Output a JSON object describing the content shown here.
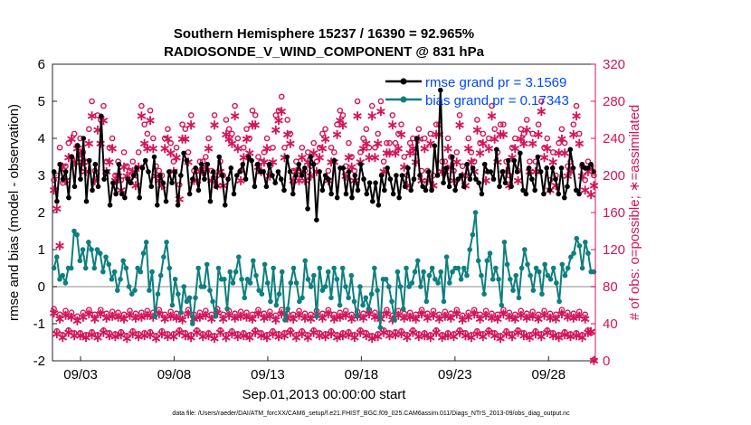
{
  "chart_data": {
    "type": "line",
    "title": "Southern Hemisphere 15237 / 16390 = 92.965%",
    "subtitle": "RADIOSONDE_V_WIND_COMPONENT @ 831 hPa",
    "xlabel": "Sep.01,2013 00:00:00 start",
    "ylabel_left": "rmse and bias (model - observation)",
    "ylabel_right": "# of obs: o=possible; ∗=assimilated",
    "footnote": "data file: /Users/raeder/DAI/ATM_forcXX/CAM6_setup/f.e21.FHIST_BGC.f09_025.CAM6assim.011/Diags_NTrS_2013-09/obs_diag_output.nc",
    "x_tick_labels": [
      "09/03",
      "09/08",
      "09/13",
      "09/18",
      "09/23",
      "09/28"
    ],
    "x_tick_days": [
      3,
      8,
      13,
      18,
      23,
      28
    ],
    "xlim_days": [
      1.5,
      30.5
    ],
    "ylim_left": [
      -2,
      6
    ],
    "left_ticks": [
      "-2",
      "-1",
      "0",
      "1",
      "2",
      "3",
      "4",
      "5",
      "6"
    ],
    "ylim_right": [
      0,
      320
    ],
    "right_ticks": [
      "0",
      "40",
      "80",
      "120",
      "160",
      "200",
      "240",
      "280",
      "320"
    ],
    "reference_line_y": 0,
    "legend": [
      {
        "name": "rmse grand pr = 3.1569",
        "color": "#000000"
      },
      {
        "name": "bias grand pr = 0.17343",
        "color": "#008080"
      }
    ],
    "colors": {
      "rmse": "#000000",
      "bias": "#0d7f7f",
      "counts": "#d4145a",
      "zero_line": "#b3b3b3",
      "legend_text": "#0047ff"
    },
    "series": [
      {
        "name": "rmse",
        "axis": "left",
        "values": [
          3.1,
          2.3,
          3.3,
          2.9,
          3.1,
          2.4,
          3.5,
          2.7,
          3.8,
          2.9,
          4.0,
          2.3,
          3.4,
          2.6,
          3.3,
          2.7,
          4.6,
          2.9,
          3.1,
          2.2,
          2.8,
          2.5,
          3.3,
          2.5,
          2.4,
          2.9,
          2.8,
          3.0,
          3.2,
          2.4,
          3.2,
          3.4,
          3.1,
          2.7,
          3.5,
          2.2,
          3.0,
          2.8,
          2.3,
          3.1,
          2.8,
          3.1,
          2.2,
          3.0,
          3.6,
          3.4,
          2.5,
          2.9,
          3.2,
          2.6,
          3.3,
          2.9,
          3.3,
          2.3,
          3.1,
          2.7,
          3.5,
          3.0,
          2.2,
          2.9,
          3.2,
          2.5,
          3.0,
          3.1,
          3.3,
          2.9,
          3.5,
          3.4,
          2.7,
          3.3,
          3.1,
          3.1,
          2.7,
          3.3,
          3.0,
          2.8,
          3.1,
          2.9,
          2.6,
          3.5,
          3.1,
          2.5,
          3.0,
          3.3,
          3.0,
          3.2,
          2.1,
          3.5,
          3.3,
          1.8,
          3.1,
          2.6,
          3.0,
          2.9,
          2.5,
          3.4,
          2.4,
          3.2,
          3.2,
          2.5,
          3.1,
          2.4,
          3.0,
          2.6,
          3.3,
          2.9,
          2.5,
          2.8,
          2.3,
          2.8,
          2.2,
          3.0,
          2.6,
          3.2,
          2.9,
          2.5,
          3.0,
          2.4,
          3.0,
          2.7,
          3.2,
          2.6,
          2.9,
          4.0,
          3.0,
          2.7,
          2.6,
          3.1,
          2.6,
          3.8,
          3.0,
          5.3,
          2.8,
          3.2,
          2.7,
          3.5,
          2.6,
          2.9,
          3.0,
          2.7,
          3.3,
          2.9,
          3.2,
          2.9,
          2.8,
          2.5,
          3.3,
          3.1,
          3.1,
          2.9,
          3.7,
          2.7,
          3.1,
          2.8,
          3.4,
          2.7,
          3.4,
          3.1,
          3.6,
          2.6,
          2.5,
          3.2,
          2.9,
          2.6,
          3.5,
          3.1,
          2.5,
          3.2,
          2.6,
          3.2,
          2.9,
          2.5,
          3.2,
          2.4,
          2.7,
          3.7,
          3.2,
          2.6,
          2.5,
          3.3,
          3.2,
          3.2,
          3.3,
          3.1
        ]
      },
      {
        "name": "bias",
        "axis": "left",
        "values": [
          0.5,
          0.8,
          0.2,
          0.3,
          0.1,
          0.5,
          0.5,
          1.5,
          1.4,
          0.7,
          1.0,
          0.5,
          1.2,
          1.0,
          0.5,
          1.0,
          0.9,
          0.4,
          0.8,
          0.6,
          0.2,
          0.4,
          -0.1,
          0.2,
          0.7,
          0.5,
          0.0,
          -0.2,
          -0.1,
          0.5,
          0.4,
          0.9,
          1.2,
          -0.1,
          0.4,
          -0.8,
          -0.2,
          0.3,
          0.8,
          1.2,
          0.5,
          -0.5,
          0.2,
          -0.2,
          -0.7,
          0.0,
          -0.4,
          -0.3,
          -1.0,
          -0.3,
          0.5,
          0.0,
          0.0,
          0.6,
          -0.1,
          -0.4,
          -0.8,
          0.5,
          0.2,
          0.2,
          -0.6,
          0.4,
          0.1,
          0.4,
          0.8,
          0.2,
          -0.3,
          0.2,
          0.1,
          0.7,
          0.3,
          -0.1,
          -0.2,
          0.6,
          0.1,
          -0.4,
          0.5,
          -0.5,
          -0.2,
          0.4,
          -0.9,
          -0.6,
          0.1,
          0.5,
          0.1,
          -0.4,
          -0.3,
          0.7,
          0.2,
          0.0,
          0.3,
          -0.8,
          0.5,
          -0.1,
          0.0,
          0.4,
          -0.3,
          0.5,
          0.2,
          -0.5,
          0.5,
          0.0,
          -0.3,
          0.3,
          -0.4,
          -0.8,
          0.0,
          -0.5,
          -0.3,
          -0.6,
          -0.2,
          0.5,
          -0.1,
          -1.1,
          0.2,
          0.2,
          0.0,
          -0.4,
          -0.9,
          0.4,
          0.0,
          -0.6,
          0.5,
          0.0,
          0.1,
          0.4,
          0.7,
          0.0,
          0.4,
          -0.4,
          0.3,
          0.5,
          0.2,
          0.1,
          0.4,
          -0.4,
          0.8,
          0.1,
          0.4,
          0.5,
          0.5,
          0.2,
          0.5,
          0.3,
          1.0,
          1.4,
          2.0,
          0.7,
          0.3,
          -0.2,
          0.7,
          0.9,
          0.2,
          0.5,
          0.2,
          -0.5,
          1.2,
          0.6,
          0.2,
          -0.1,
          0.3,
          -0.3,
          0.5,
          1.0,
          0.6,
          0.3,
          -0.1,
          0.5,
          0.4,
          -0.2,
          0.6,
          0.3,
          0.2,
          0.5,
          0.1,
          -0.4,
          0.6,
          0.3,
          0.5,
          0.8,
          0.9,
          1.3,
          1.1,
          0.5,
          1.2,
          0.9,
          0.4,
          0.4
        ]
      },
      {
        "name": "possible obs",
        "axis": "right",
        "marker": "o",
        "values": [
          195,
          200,
          230,
          192,
          210,
          235,
          220,
          245,
          232,
          240,
          225,
          215,
          250,
          280,
          205,
          265,
          260,
          275,
          215,
          230,
          240,
          200,
          215,
          195,
          225,
          210,
          205,
          215,
          200,
          225,
          275,
          255,
          245,
          270,
          240,
          210,
          205,
          200,
          240,
          250,
          235,
          215,
          230,
          190,
          255,
          250,
          225,
          265,
          205,
          205,
          215,
          215,
          220,
          240,
          205,
          265,
          200,
          215,
          200,
          260,
          250,
          245,
          275,
          240,
          205,
          230,
          250,
          240,
          270,
          265,
          220,
          215,
          225,
          240,
          210,
          230,
          265,
          270,
          285,
          230,
          260,
          245,
          205,
          215,
          205,
          230,
          205,
          225,
          210,
          235,
          215,
          230,
          245,
          250,
          205,
          230,
          225,
          255,
          270,
          265,
          210,
          235,
          220,
          205,
          280,
          225,
          240,
          250,
          230,
          275,
          230,
          245,
          280,
          215,
          235,
          235,
          265,
          235,
          245,
          255,
          220,
          200,
          235,
          240,
          225,
          250,
          205,
          240,
          205,
          245,
          200,
          255,
          255,
          215,
          215,
          240,
          220,
          205,
          225,
          265,
          210,
          200,
          240,
          225,
          215,
          260,
          235,
          245,
          205,
          240,
          275,
          250,
          225,
          255,
          255,
          215,
          200,
          230,
          240,
          205,
          250,
          245,
          260,
          215,
          245,
          215,
          255,
          280,
          230,
          240,
          195,
          225,
          200,
          235,
          250,
          235,
          210,
          215,
          255,
          275,
          245,
          210,
          195,
          215,
          210,
          200
        ]
      },
      {
        "name": "assimilated obs",
        "axis": "right",
        "marker": "*",
        "values": [
          185,
          165,
          125,
          210,
          195,
          220,
          240,
          215,
          230,
          225,
          215,
          205,
          235,
          265,
          195,
          250,
          235,
          260,
          205,
          215,
          230,
          195,
          200,
          185,
          210,
          200,
          195,
          205,
          190,
          210,
          265,
          235,
          230,
          260,
          230,
          200,
          195,
          190,
          230,
          240,
          225,
          205,
          220,
          175,
          240,
          240,
          215,
          255,
          195,
          195,
          205,
          205,
          210,
          230,
          195,
          255,
          190,
          205,
          190,
          245,
          240,
          235,
          265,
          230,
          195,
          220,
          240,
          225,
          255,
          255,
          210,
          205,
          215,
          230,
          200,
          215,
          250,
          260,
          270,
          220,
          245,
          235,
          195,
          205,
          195,
          220,
          195,
          215,
          200,
          225,
          205,
          220,
          230,
          240,
          195,
          215,
          215,
          245,
          260,
          255,
          200,
          220,
          210,
          195,
          265,
          215,
          230,
          235,
          220,
          265,
          220,
          235,
          270,
          205,
          225,
          225,
          255,
          225,
          230,
          245,
          210,
          190,
          225,
          230,
          215,
          240,
          195,
          230,
          195,
          235,
          190,
          245,
          245,
          205,
          205,
          230,
          210,
          195,
          215,
          255,
          200,
          190,
          230,
          215,
          205,
          250,
          225,
          235,
          195,
          230,
          265,
          240,
          215,
          245,
          245,
          205,
          190,
          220,
          230,
          195,
          240,
          235,
          250,
          205,
          235,
          205,
          245,
          270,
          220,
          230,
          185,
          215,
          190,
          225,
          240,
          225,
          200,
          205,
          245,
          265,
          235,
          200,
          185,
          205,
          180,
          190
        ]
      },
      {
        "name": "possible obs (low)",
        "axis": "right",
        "marker": "o",
        "values": [
          56,
          32,
          50,
          28,
          54,
          33,
          52,
          30,
          48,
          30,
          52,
          28,
          55,
          31,
          50,
          28,
          55,
          33,
          51,
          30,
          53,
          29,
          52,
          31,
          50,
          27,
          54,
          32,
          51,
          29,
          52,
          30,
          54,
          31,
          52,
          27,
          55,
          32,
          50,
          29,
          53,
          29,
          51,
          33,
          49,
          30,
          55,
          28,
          50,
          33,
          52,
          29,
          54,
          30,
          50,
          27,
          56,
          33,
          50,
          28,
          54,
          32,
          51,
          29,
          53,
          30,
          52,
          28,
          50,
          33,
          55,
          30,
          51,
          28,
          53,
          32,
          49,
          29,
          55,
          30,
          51,
          33,
          50,
          28,
          54,
          32,
          51,
          28,
          50,
          33,
          54,
          30,
          51,
          29,
          55,
          32,
          50,
          28,
          52,
          30,
          54,
          31,
          50,
          28,
          53,
          33,
          51,
          30,
          55,
          27,
          52,
          29,
          50,
          33,
          55,
          30,
          49,
          31,
          54,
          32,
          51,
          28,
          52,
          33,
          50,
          29,
          55,
          30,
          51,
          28,
          54,
          33,
          50,
          28,
          53,
          30,
          51,
          29,
          55,
          33,
          49,
          30,
          52,
          28,
          55,
          32,
          50,
          29,
          54,
          33,
          51,
          30,
          50,
          27,
          55,
          32,
          52,
          29,
          50,
          33,
          54,
          30,
          51,
          28,
          53,
          32,
          50,
          29,
          54,
          33,
          51,
          30,
          50,
          28,
          55,
          31,
          52,
          29,
          51,
          30,
          53,
          28,
          50,
          33,
          30,
          1
        ]
      },
      {
        "name": "assimilated obs (low)",
        "axis": "right",
        "marker": "*",
        "values": [
          52,
          30,
          46,
          26,
          50,
          31,
          48,
          28,
          44,
          28,
          48,
          26,
          51,
          29,
          46,
          26,
          51,
          31,
          47,
          28,
          49,
          27,
          48,
          29,
          46,
          25,
          50,
          30,
          47,
          27,
          48,
          28,
          50,
          29,
          48,
          25,
          51,
          30,
          46,
          27,
          49,
          27,
          47,
          31,
          45,
          28,
          51,
          26,
          46,
          31,
          48,
          27,
          50,
          28,
          46,
          25,
          52,
          31,
          46,
          26,
          50,
          30,
          47,
          27,
          49,
          28,
          48,
          26,
          46,
          31,
          51,
          28,
          47,
          26,
          49,
          30,
          45,
          27,
          51,
          28,
          47,
          31,
          46,
          26,
          50,
          30,
          47,
          26,
          46,
          31,
          50,
          28,
          47,
          27,
          51,
          30,
          46,
          26,
          48,
          28,
          50,
          29,
          46,
          26,
          49,
          31,
          47,
          28,
          51,
          25,
          48,
          27,
          46,
          31,
          51,
          28,
          45,
          29,
          50,
          30,
          47,
          26,
          48,
          31,
          46,
          27,
          51,
          28,
          47,
          26,
          50,
          31,
          46,
          26,
          49,
          28,
          47,
          27,
          51,
          31,
          45,
          28,
          48,
          26,
          51,
          30,
          46,
          27,
          50,
          31,
          47,
          28,
          46,
          25,
          51,
          30,
          48,
          27,
          46,
          31,
          50,
          28,
          47,
          26,
          49,
          30,
          46,
          27,
          50,
          31,
          47,
          28,
          46,
          26,
          51,
          29,
          48,
          27,
          47,
          28,
          49,
          26,
          46,
          31,
          32,
          1
        ]
      }
    ]
  }
}
